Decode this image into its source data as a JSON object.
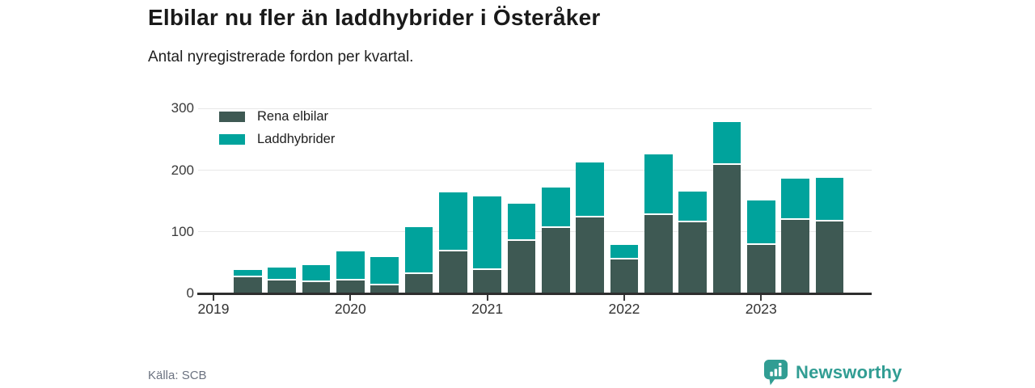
{
  "header": {
    "title": "Elbilar nu fler än laddhybrider i Österåker",
    "subtitle": "Antal nyregistrerade fordon per kvartal."
  },
  "chart_data": {
    "type": "bar",
    "stacked": true,
    "title": "Elbilar nu fler än laddhybrider i Österåker",
    "subtitle": "Antal nyregistrerade fordon per kvartal.",
    "categories": [
      "2019 Q2",
      "2019 Q3",
      "2019 Q4",
      "2020 Q1",
      "2020 Q2",
      "2020 Q3",
      "2020 Q4",
      "2021 Q1",
      "2021 Q2",
      "2021 Q3",
      "2021 Q4",
      "2022 Q1",
      "2022 Q2",
      "2022 Q3",
      "2022 Q4",
      "2023 Q1",
      "2023 Q2",
      "2023 Q3"
    ],
    "series": [
      {
        "name": "Rena elbilar",
        "color": "#3e5953",
        "values": [
          26,
          21,
          19,
          22,
          14,
          32,
          68,
          39,
          85,
          107,
          123,
          56,
          128,
          116,
          209,
          79,
          119,
          117
        ]
      },
      {
        "name": "Laddhybrider",
        "color": "#00a39c",
        "values": [
          12,
          21,
          27,
          47,
          45,
          76,
          96,
          119,
          61,
          65,
          89,
          23,
          98,
          50,
          69,
          72,
          68,
          71
        ]
      }
    ],
    "xlabel": "",
    "ylabel": "",
    "ylim": [
      0,
      300
    ],
    "yticks": [
      0,
      100,
      200,
      300
    ],
    "x_tick_labels": [
      "2019",
      "2020",
      "2021",
      "2022",
      "2023"
    ],
    "grid": true,
    "legend_position": "top-left"
  },
  "footer": {
    "source": "Källa: SCB",
    "brand": "Newsworthy"
  },
  "colors": {
    "bar_dark": "#3e5953",
    "bar_teal": "#00a39c",
    "brand_teal": "#319d93",
    "gridline": "#e8e8e8",
    "baseline": "#2e2e2e",
    "axis_text": "#3a3a3a",
    "muted_text": "#6b7280"
  }
}
